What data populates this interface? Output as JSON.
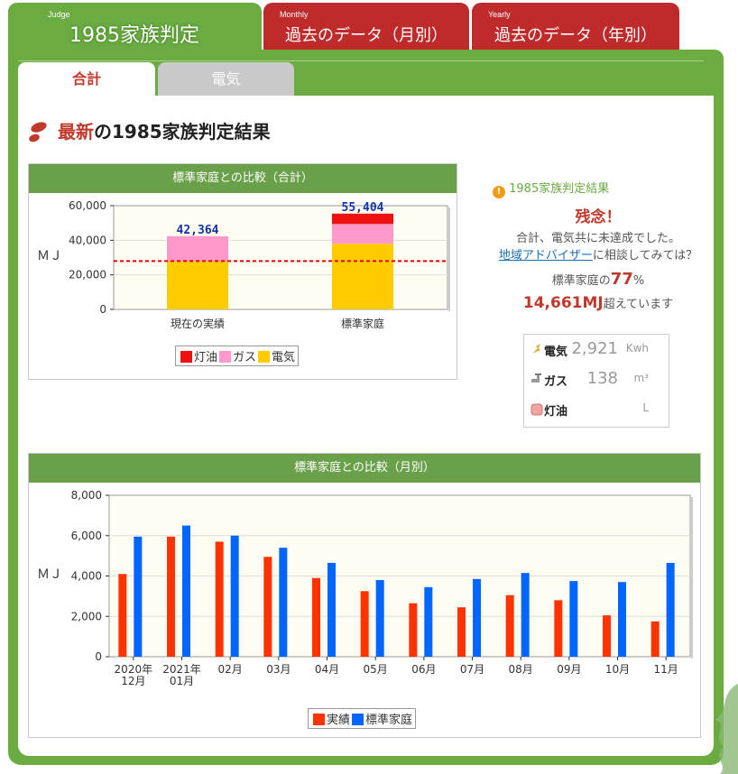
{
  "tabs": {
    "judge": {
      "small": "Judge",
      "label": "1985家族判定"
    },
    "monthly": {
      "small": "Monthly",
      "label": "過去のデータ（月別）"
    },
    "yearly": {
      "small": "Yearly",
      "label": "過去のデータ（年別）"
    }
  },
  "subtabs": {
    "total": "合計",
    "electric": "電気"
  },
  "title": {
    "highlight": "最新",
    "rest": "の1985家族判定結果"
  },
  "chart1": {
    "header": "標準家庭との比較（合計）",
    "ylabel": "ＭＪ",
    "legend": [
      "灯油",
      "ガス",
      "電気"
    ]
  },
  "chart2": {
    "header": "標準家庭との比較（月別）",
    "ylabel": "ＭＪ",
    "legend": [
      "実績",
      "標準家庭"
    ]
  },
  "result": {
    "head": "1985家族判定結果",
    "verdict": "残念！",
    "line1": "合計、電気共に未達成でした。",
    "link": "地域アドバイザー",
    "line2_rest": "に相談してみては？",
    "pct_prefix": "標準家庭の",
    "pct": "77",
    "pct_suffix": "%",
    "over_value": "14,661MJ",
    "over_suffix": "超えています"
  },
  "usage": [
    {
      "label": "電気",
      "value": "2,921",
      "unit": "Kwh"
    },
    {
      "label": "ガス",
      "value": "138",
      "unit": "m³"
    },
    {
      "label": "灯油",
      "value": "",
      "unit": "L"
    }
  ],
  "colors": {
    "green": "#6aab42",
    "red_tab": "#bf2a2a",
    "kerosene": "#ee1111",
    "gas": "#ff99cc",
    "elec": "#ffcc00",
    "actual": "#ff3300",
    "standard": "#0066ff"
  },
  "chart_data": [
    {
      "type": "bar",
      "stacked": true,
      "title": "標準家庭との比較（合計）",
      "ylabel": "ＭＪ",
      "categories": [
        "現在の実績",
        "標準家庭"
      ],
      "series": [
        {
          "name": "電気",
          "values": [
            28000,
            38000
          ]
        },
        {
          "name": "ガス",
          "values": [
            14364,
            11404
          ]
        },
        {
          "name": "灯油",
          "values": [
            0,
            6000
          ]
        }
      ],
      "totals": [
        "42,364",
        "55,404"
      ],
      "reference_line": 28000,
      "ylim": [
        0,
        60000
      ],
      "yticks": [
        "0",
        "20,000",
        "40,000",
        "60,000"
      ]
    },
    {
      "type": "bar",
      "title": "標準家庭との比較（月別）",
      "ylabel": "ＭＪ",
      "categories": [
        [
          "2020年",
          "12月"
        ],
        [
          "2021年",
          "01月"
        ],
        [
          "02月"
        ],
        [
          "03月"
        ],
        [
          "04月"
        ],
        [
          "05月"
        ],
        [
          "06月"
        ],
        [
          "07月"
        ],
        [
          "08月"
        ],
        [
          "09月"
        ],
        [
          "10月"
        ],
        [
          "11月"
        ]
      ],
      "series": [
        {
          "name": "実績",
          "values": [
            4100,
            5950,
            5700,
            4950,
            3900,
            3250,
            2650,
            2450,
            3050,
            2800,
            2050,
            1750
          ]
        },
        {
          "name": "標準家庭",
          "values": [
            5950,
            6500,
            6000,
            5400,
            4650,
            3800,
            3450,
            3850,
            4150,
            3750,
            3700,
            4650
          ]
        }
      ],
      "ylim": [
        0,
        8000
      ],
      "yticks": [
        "0",
        "2,000",
        "4,000",
        "6,000",
        "8,000"
      ]
    }
  ]
}
